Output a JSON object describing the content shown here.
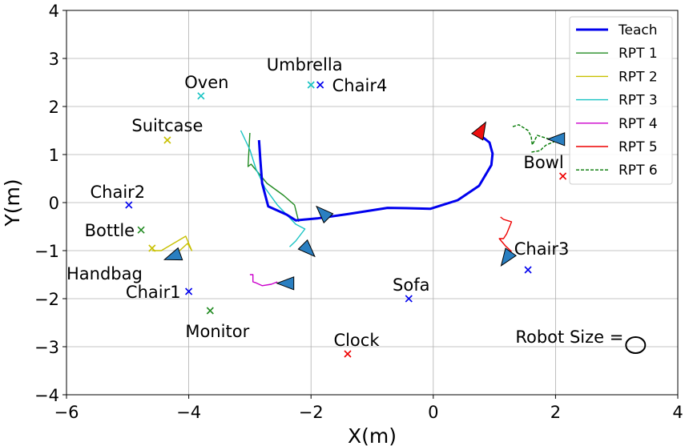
{
  "chart_data": {
    "type": "line",
    "xlabel": "X(m)",
    "ylabel": "Y(m)",
    "xlim": [
      -6,
      4
    ],
    "ylim": [
      -4,
      4
    ],
    "xticks": [
      -6,
      -4,
      -2,
      0,
      2,
      4
    ],
    "yticks": [
      -4,
      -3,
      -2,
      -1,
      0,
      1,
      2,
      3,
      4
    ],
    "tick_labels_x": [
      "−6",
      "−4",
      "−2",
      "0",
      "2",
      "4"
    ],
    "tick_labels_y": [
      "−4",
      "−3",
      "−2",
      "−1",
      "0",
      "1",
      "2",
      "3",
      "4"
    ],
    "grid": true,
    "legend_position": "top-right",
    "series": [
      {
        "name": "Teach",
        "color": "#0000ee",
        "style": "solid",
        "width": 3,
        "x": [
          -2.85,
          -2.83,
          -2.8,
          -2.7,
          -2.4,
          -2.25,
          -1.9,
          -1.4,
          -0.75,
          -0.3,
          -0.05,
          0.4,
          0.75,
          0.95,
          0.97,
          0.92,
          0.8
        ],
        "y": [
          1.3,
          0.9,
          0.4,
          -0.08,
          -0.25,
          -0.37,
          -0.33,
          -0.24,
          -0.11,
          -0.12,
          -0.13,
          0.05,
          0.35,
          0.78,
          1.02,
          1.25,
          1.37
        ]
      },
      {
        "name": "RPT 1",
        "color": "#228b22",
        "style": "solid",
        "width": 1.4,
        "x": [
          -3.0,
          -3.03,
          -2.98,
          -2.72,
          -2.45,
          -2.27,
          -2.2
        ],
        "y": [
          1.45,
          0.75,
          0.8,
          0.4,
          0.15,
          -0.05,
          -0.4
        ]
      },
      {
        "name": "RPT 2",
        "color": "#c8c000",
        "style": "solid",
        "width": 1.4,
        "x": [
          -4.15,
          -4.02,
          -3.95,
          -4.05,
          -4.45,
          -4.6
        ],
        "y": [
          -1.0,
          -0.85,
          -1.0,
          -0.7,
          -1.0,
          -1.0
        ]
      },
      {
        "name": "RPT 3",
        "color": "#17c3c3",
        "style": "solid",
        "width": 1.4,
        "x": [
          -3.15,
          -3.0,
          -2.9,
          -2.75,
          -2.55,
          -2.4,
          -2.25,
          -2.1,
          -2.25,
          -2.35
        ],
        "y": [
          1.5,
          1.1,
          0.7,
          0.3,
          -0.05,
          -0.25,
          -0.45,
          -0.55,
          -0.8,
          -0.92
        ]
      },
      {
        "name": "RPT 4",
        "color": "#cc00cc",
        "style": "solid",
        "width": 1.4,
        "x": [
          -3.0,
          -2.95,
          -2.95,
          -2.9,
          -2.8,
          -2.65,
          -2.55
        ],
        "y": [
          -1.5,
          -1.5,
          -1.65,
          -1.67,
          -1.73,
          -1.7,
          -1.65
        ]
      },
      {
        "name": "RPT 5",
        "color": "#ee0000",
        "style": "solid",
        "width": 1.4,
        "x": [
          1.1,
          1.15,
          1.28,
          1.2,
          1.15,
          1.08,
          1.18,
          1.28
        ],
        "y": [
          -0.3,
          -0.35,
          -0.4,
          -0.65,
          -0.75,
          -0.75,
          -0.9,
          -1.02
        ]
      },
      {
        "name": "RPT 6",
        "color": "#007700",
        "style": "dashed",
        "width": 1.4,
        "x": [
          1.3,
          1.4,
          1.55,
          1.6,
          1.62,
          1.7,
          1.9,
          2.0,
          1.85,
          1.8,
          1.75,
          1.6
        ],
        "y": [
          1.58,
          1.62,
          1.5,
          1.38,
          1.2,
          1.4,
          1.32,
          1.28,
          1.2,
          1.15,
          1.08,
          1.05
        ]
      }
    ],
    "objects": [
      {
        "label": "Umbrella",
        "x": -2.0,
        "y": 2.45,
        "color": "#17c3c3"
      },
      {
        "label": "Chair4",
        "x": -1.85,
        "y": 2.45,
        "color": "#0000ee"
      },
      {
        "label": "Oven",
        "x": -3.8,
        "y": 2.22,
        "color": "#17c3c3"
      },
      {
        "label": "Suitcase",
        "x": -4.35,
        "y": 1.3,
        "color": "#c8c000"
      },
      {
        "label": "Chair2",
        "x": -4.98,
        "y": -0.05,
        "color": "#0000ee"
      },
      {
        "label": "Bottle",
        "x": -4.78,
        "y": -0.57,
        "color": "#228b22"
      },
      {
        "label": "Handbag",
        "x": -4.6,
        "y": -0.95,
        "color": "#c8c000"
      },
      {
        "label": "Chair1",
        "x": -4.0,
        "y": -1.85,
        "color": "#0000ee"
      },
      {
        "label": "Monitor",
        "x": -3.65,
        "y": -2.25,
        "color": "#228b22"
      },
      {
        "label": "Sofa",
        "x": -0.4,
        "y": -2.0,
        "color": "#0000ee"
      },
      {
        "label": "Clock",
        "x": -1.4,
        "y": -3.15,
        "color": "#ee0000"
      },
      {
        "label": "Chair3",
        "x": 1.55,
        "y": -1.4,
        "color": "#0000ee"
      },
      {
        "label": "Bowl",
        "x": 2.12,
        "y": 0.55,
        "color": "#ee0000"
      }
    ],
    "annotations": [
      {
        "text": "Robot Size =",
        "x": 3.1,
        "y": -2.9
      }
    ]
  }
}
